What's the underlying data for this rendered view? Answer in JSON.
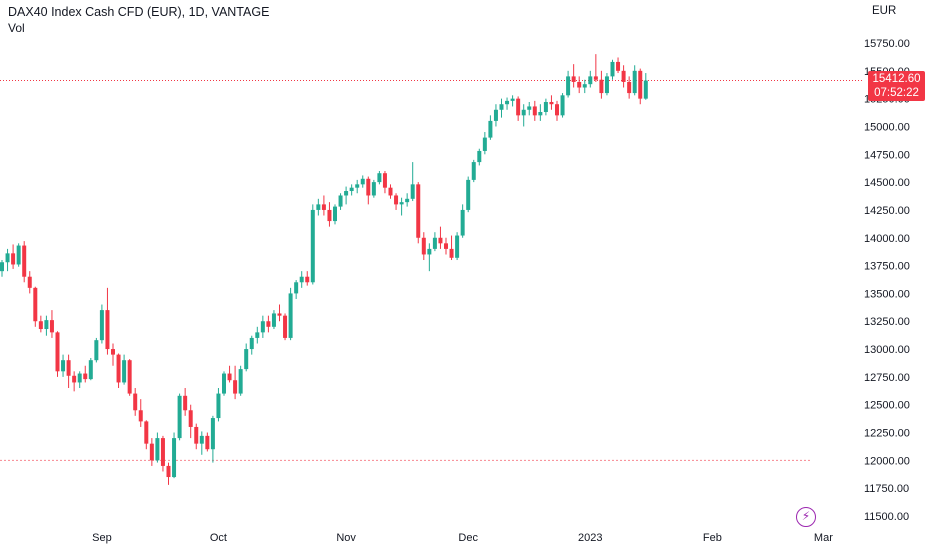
{
  "header": {
    "title": "DAX40 Index Cash CFD (EUR), 1D, VANTAGE",
    "volume_label": "Vol"
  },
  "price_scale": {
    "currency": "EUR",
    "last_price": "15412.60",
    "countdown": "07:52:22"
  },
  "colors": {
    "up": "#22ab94",
    "down": "#f23645",
    "last_price_line": "#f23645",
    "level_line": "#f23645",
    "event_icon": "#9c27b0"
  },
  "icons": {
    "event": "lightning-bolt-icon"
  },
  "chart_data": {
    "type": "candlestick",
    "ylim": [
      11450,
      15950
    ],
    "y_ticks": [
      11500,
      11750,
      12000,
      12250,
      12500,
      12750,
      13000,
      13250,
      13500,
      13750,
      14000,
      14250,
      14500,
      14750,
      15000,
      15250,
      15500,
      15750
    ],
    "y_tick_labels": [
      "11500.00",
      "11750.00",
      "12000.00",
      "12250.00",
      "12500.00",
      "12750.00",
      "13000.00",
      "13250.00",
      "13500.00",
      "13750.00",
      "14000.00",
      "14250.00",
      "14500.00",
      "14750.00",
      "15000.00",
      "15250.00",
      "15500.00",
      "15750.00"
    ],
    "x_labels": [
      {
        "label": "Sep",
        "index": 18
      },
      {
        "label": "Oct",
        "index": 39
      },
      {
        "label": "Nov",
        "index": 62
      },
      {
        "label": "Dec",
        "index": 84
      },
      {
        "label": "2023",
        "index": 106
      },
      {
        "label": "Feb",
        "index": 128
      },
      {
        "label": "Mar",
        "index": 148
      }
    ],
    "horizontal_levels": [
      12000
    ],
    "last_price": 15412.6,
    "candles": [
      [
        13700,
        13800,
        13650,
        13780
      ],
      [
        13780,
        13900,
        13700,
        13860
      ],
      [
        13860,
        13940,
        13720,
        13760
      ],
      [
        13760,
        13950,
        13740,
        13930
      ],
      [
        13930,
        13970,
        13600,
        13650
      ],
      [
        13650,
        13700,
        13500,
        13550
      ],
      [
        13550,
        13560,
        13200,
        13250
      ],
      [
        13250,
        13300,
        13150,
        13180
      ],
      [
        13180,
        13300,
        13120,
        13260
      ],
      [
        13260,
        13350,
        13100,
        13150
      ],
      [
        13150,
        13160,
        12750,
        12800
      ],
      [
        12800,
        12950,
        12750,
        12900
      ],
      [
        12900,
        12950,
        12650,
        12760
      ],
      [
        12760,
        12800,
        12620,
        12700
      ],
      [
        12700,
        12800,
        12650,
        12780
      ],
      [
        12780,
        12850,
        12700,
        12730
      ],
      [
        12730,
        12920,
        12720,
        12900
      ],
      [
        12900,
        13100,
        12880,
        13080
      ],
      [
        13080,
        13400,
        13050,
        13350
      ],
      [
        13350,
        13550,
        12950,
        13000
      ],
      [
        13000,
        13050,
        12850,
        12950
      ],
      [
        12950,
        12960,
        12650,
        12700
      ],
      [
        12700,
        12950,
        12680,
        12900
      ],
      [
        12900,
        12910,
        12580,
        12600
      ],
      [
        12600,
        12650,
        12400,
        12450
      ],
      [
        12450,
        12550,
        12300,
        12350
      ],
      [
        12350,
        12360,
        12100,
        12150
      ],
      [
        12150,
        12200,
        11950,
        12000
      ],
      [
        12000,
        12250,
        11980,
        12200
      ],
      [
        12200,
        12220,
        11900,
        11950
      ],
      [
        11950,
        11980,
        11780,
        11850
      ],
      [
        11850,
        12250,
        11840,
        12200
      ],
      [
        12200,
        12600,
        12180,
        12580
      ],
      [
        12580,
        12650,
        12400,
        12450
      ],
      [
        12450,
        12500,
        12200,
        12300
      ],
      [
        12300,
        12330,
        12100,
        12150
      ],
      [
        12150,
        12260,
        12050,
        12220
      ],
      [
        12220,
        12250,
        12080,
        12100
      ],
      [
        12100,
        12400,
        11980,
        12380
      ],
      [
        12380,
        12650,
        12350,
        12600
      ],
      [
        12600,
        12800,
        12580,
        12780
      ],
      [
        12780,
        12850,
        12700,
        12720
      ],
      [
        12720,
        12850,
        12550,
        12600
      ],
      [
        12600,
        12850,
        12580,
        12820
      ],
      [
        12820,
        13050,
        12800,
        13000
      ],
      [
        13000,
        13120,
        12950,
        13100
      ],
      [
        13100,
        13200,
        13050,
        13150
      ],
      [
        13150,
        13300,
        13100,
        13250
      ],
      [
        13250,
        13300,
        13150,
        13200
      ],
      [
        13200,
        13350,
        13180,
        13320
      ],
      [
        13320,
        13400,
        13250,
        13300
      ],
      [
        13300,
        13320,
        13080,
        13100
      ],
      [
        13100,
        13550,
        13080,
        13500
      ],
      [
        13500,
        13620,
        13450,
        13600
      ],
      [
        13600,
        13700,
        13550,
        13650
      ],
      [
        13650,
        13700,
        13570,
        13600
      ],
      [
        13600,
        14300,
        13580,
        14250
      ],
      [
        14250,
        14350,
        14200,
        14300
      ],
      [
        14300,
        14380,
        14200,
        14250
      ],
      [
        14250,
        14320,
        14100,
        14150
      ],
      [
        14150,
        14300,
        14120,
        14280
      ],
      [
        14280,
        14400,
        14250,
        14380
      ],
      [
        14380,
        14460,
        14300,
        14420
      ],
      [
        14420,
        14480,
        14380,
        14450
      ],
      [
        14450,
        14520,
        14400,
        14480
      ],
      [
        14480,
        14560,
        14450,
        14530
      ],
      [
        14530,
        14550,
        14300,
        14380
      ],
      [
        14380,
        14520,
        14360,
        14500
      ],
      [
        14500,
        14600,
        14480,
        14580
      ],
      [
        14580,
        14600,
        14400,
        14450
      ],
      [
        14450,
        14480,
        14350,
        14380
      ],
      [
        14380,
        14400,
        14250,
        14300
      ],
      [
        14300,
        14360,
        14200,
        14320
      ],
      [
        14320,
        14400,
        14280,
        14350
      ],
      [
        14350,
        14680,
        14330,
        14480
      ],
      [
        14480,
        14500,
        13950,
        14000
      ],
      [
        14000,
        14050,
        13800,
        13850
      ],
      [
        13850,
        13950,
        13700,
        13900
      ],
      [
        13900,
        14050,
        13880,
        14000
      ],
      [
        14000,
        14100,
        13900,
        13950
      ],
      [
        13950,
        14000,
        13850,
        13900
      ],
      [
        13900,
        14020,
        13800,
        13820
      ],
      [
        13820,
        14050,
        13800,
        14020
      ],
      [
        14020,
        14300,
        14000,
        14250
      ],
      [
        14250,
        14550,
        14230,
        14520
      ],
      [
        14520,
        14700,
        14500,
        14680
      ],
      [
        14680,
        14800,
        14650,
        14780
      ],
      [
        14780,
        14950,
        14750,
        14900
      ],
      [
        14900,
        15100,
        14880,
        15050
      ],
      [
        15050,
        15200,
        15000,
        15150
      ],
      [
        15150,
        15250,
        15080,
        15200
      ],
      [
        15200,
        15260,
        15150,
        15230
      ],
      [
        15230,
        15280,
        15180,
        15250
      ],
      [
        15250,
        15270,
        15050,
        15100
      ],
      [
        15100,
        15200,
        15000,
        15150
      ],
      [
        15150,
        15220,
        15100,
        15180
      ],
      [
        15180,
        15230,
        15050,
        15100
      ],
      [
        15100,
        15200,
        15050,
        15130
      ],
      [
        15130,
        15250,
        15100,
        15220
      ],
      [
        15220,
        15280,
        15150,
        15200
      ],
      [
        15200,
        15230,
        15050,
        15100
      ],
      [
        15100,
        15300,
        15080,
        15280
      ],
      [
        15280,
        15500,
        15260,
        15450
      ],
      [
        15450,
        15560,
        15350,
        15400
      ],
      [
        15400,
        15450,
        15300,
        15350
      ],
      [
        15350,
        15420,
        15300,
        15380
      ],
      [
        15380,
        15500,
        15350,
        15450
      ],
      [
        15450,
        15650,
        15400,
        15420
      ],
      [
        15420,
        15500,
        15250,
        15300
      ],
      [
        15300,
        15480,
        15280,
        15450
      ],
      [
        15450,
        15600,
        15420,
        15580
      ],
      [
        15580,
        15620,
        15480,
        15500
      ],
      [
        15500,
        15550,
        15350,
        15400
      ],
      [
        15400,
        15450,
        15250,
        15300
      ],
      [
        15300,
        15550,
        15280,
        15500
      ],
      [
        15500,
        15520,
        15200,
        15250
      ],
      [
        15250,
        15480,
        15240,
        15412.6
      ]
    ]
  }
}
